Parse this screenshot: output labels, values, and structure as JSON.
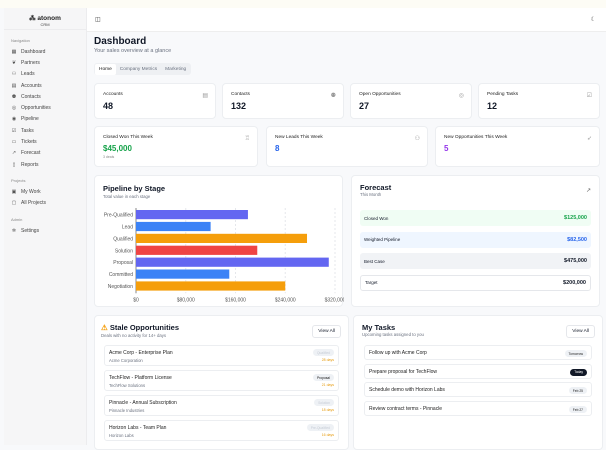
{
  "app": {
    "brand": "atonom",
    "sub": "CRM"
  },
  "sidebar": {
    "sections": [
      {
        "label": "Navigation",
        "items": [
          {
            "label": "Dashboard",
            "icon": "grid-icon"
          },
          {
            "label": "Partners",
            "icon": "handshake-icon"
          },
          {
            "label": "Leads",
            "icon": "user-plus-icon"
          },
          {
            "label": "Accounts",
            "icon": "building-icon"
          },
          {
            "label": "Contacts",
            "icon": "users-icon"
          },
          {
            "label": "Opportunities",
            "icon": "target-icon"
          },
          {
            "label": "Pipeline",
            "icon": "pipeline-icon"
          },
          {
            "label": "Tasks",
            "icon": "checklist-icon"
          },
          {
            "label": "Tickets",
            "icon": "ticket-icon"
          },
          {
            "label": "Forecast",
            "icon": "trending-up-icon"
          },
          {
            "label": "Reports",
            "icon": "file-icon"
          }
        ]
      },
      {
        "label": "Projects",
        "items": [
          {
            "label": "My Work",
            "icon": "briefcase-icon"
          },
          {
            "label": "All Projects",
            "icon": "folder-icon"
          }
        ]
      },
      {
        "label": "Admin",
        "items": [
          {
            "label": "Settings",
            "icon": "gear-icon"
          }
        ]
      }
    ]
  },
  "header": {
    "title": "Dashboard",
    "subtitle": "Your sales overview at a glance"
  },
  "tabs": [
    {
      "label": "Home",
      "active": true
    },
    {
      "label": "Company Metrics"
    },
    {
      "label": "Marketing"
    }
  ],
  "stats": [
    {
      "label": "Accounts",
      "value": "48",
      "icon": "building-icon"
    },
    {
      "label": "Contacts",
      "value": "132",
      "icon": "users-icon"
    },
    {
      "label": "Open Opportunities",
      "value": "27",
      "icon": "target-icon"
    },
    {
      "label": "Pending Tasks",
      "value": "12",
      "icon": "checklist-icon"
    }
  ],
  "weekly": [
    {
      "label": "Closed Won This Week",
      "value": "$45,000",
      "note": "3 deals",
      "color": "#16a34a",
      "icon": "trophy-icon"
    },
    {
      "label": "New Leads This Week",
      "value": "8",
      "color": "#2563eb",
      "icon": "user-plus-icon"
    },
    {
      "label": "New Opportunities This Week",
      "value": "5",
      "color": "#9333ea",
      "icon": "rocket-icon"
    }
  ],
  "pipeline": {
    "title": "Pipeline by Stage",
    "subtitle": "Total value in each stage"
  },
  "chart_data": {
    "type": "bar",
    "orientation": "horizontal",
    "categories": [
      "Pre-Qualified",
      "Lead",
      "Qualified",
      "Solution",
      "Proposal",
      "Committed",
      "Negotiation"
    ],
    "values": [
      180000,
      120000,
      275000,
      195000,
      310000,
      150000,
      240000
    ],
    "colors": [
      "#6366f1",
      "#3b82f6",
      "#f59e0b",
      "#ef4444",
      "#6366f1",
      "#3b82f6",
      "#f59e0b"
    ],
    "xlim": [
      0,
      320000
    ],
    "xticks": [
      "$0",
      "$80,000",
      "$160,000",
      "$240,000",
      "$320,000"
    ],
    "grid": true
  },
  "forecast": {
    "title": "Forecast",
    "subtitle": "This Month",
    "rows": [
      {
        "label": "Closed Won",
        "value": "$125,000",
        "bg": "#f0fdf4",
        "color": "#16a34a"
      },
      {
        "label": "Weighted Pipeline",
        "value": "$82,500",
        "bg": "#eff6ff",
        "color": "#2563eb"
      },
      {
        "label": "Best Case",
        "value": "$475,000",
        "bg": "#f1f3f6",
        "color": "#111827"
      },
      {
        "label": "Target",
        "value": "$200,000",
        "bg": "#ffffff",
        "color": "#111827"
      }
    ]
  },
  "stale": {
    "title": "Stale Opportunities",
    "subtitle": "Deals with no activity for 14+ days",
    "view_all": "View All",
    "items": [
      {
        "name": "Acme Corp - Enterprise Plan",
        "company": "Acme Corporation",
        "stage": "Qualified",
        "days": "28 days"
      },
      {
        "name": "TechFlow - Platform License",
        "company": "TechFlow Solutions",
        "stage": "Proposal",
        "days": "21 days"
      },
      {
        "name": "Pinnacle - Annual Subscription",
        "company": "Pinnacle Industries",
        "stage": "Solution",
        "days": "18 days"
      },
      {
        "name": "Horizon Labs - Team Plan",
        "company": "Horizon Labs",
        "stage": "Pre-Qualified",
        "days": "16 days"
      }
    ]
  },
  "tasks": {
    "title": "My Tasks",
    "subtitle": "Upcoming tasks assigned to you",
    "view_all": "View All",
    "items": [
      {
        "name": "Follow up with Acme Corp",
        "due": "Tomorrow"
      },
      {
        "name": "Prepare proposal for TechFlow",
        "due": "Today"
      },
      {
        "name": "Schedule demo with Horizon Labs",
        "due": "Feb 25"
      },
      {
        "name": "Review contract terms - Pinnacle",
        "due": "Feb 27"
      }
    ]
  }
}
